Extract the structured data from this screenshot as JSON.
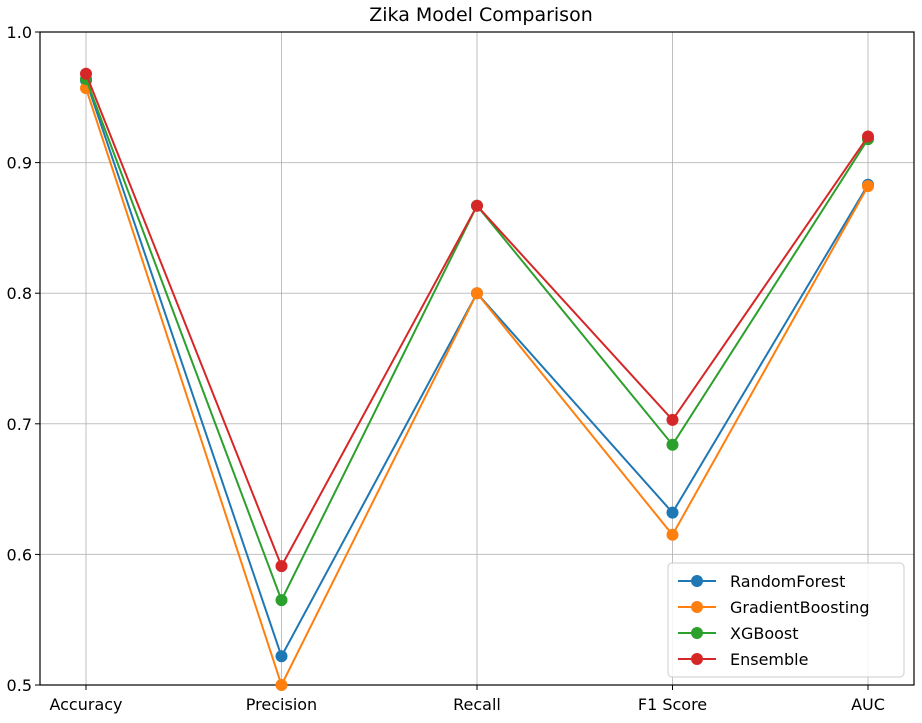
{
  "chart_data": {
    "type": "line",
    "title": "Zika Model Comparison",
    "xlabel": "",
    "ylabel": "",
    "categories": [
      "Accuracy",
      "Precision",
      "Recall",
      "F1 Score",
      "AUC"
    ],
    "ylim": [
      0.5,
      1.0
    ],
    "yticks": [
      "0.5",
      "0.6",
      "0.7",
      "0.8",
      "0.9",
      "1.0"
    ],
    "grid": true,
    "legend_position": "bottom-right",
    "series": [
      {
        "name": "RandomForest",
        "color": "#1f77b4",
        "values": [
          0.963,
          0.522,
          0.8,
          0.632,
          0.883
        ]
      },
      {
        "name": "GradientBoosting",
        "color": "#ff7f0e",
        "values": [
          0.957,
          0.5,
          0.8,
          0.615,
          0.882
        ]
      },
      {
        "name": "XGBoost",
        "color": "#2ca02c",
        "values": [
          0.964,
          0.565,
          0.867,
          0.684,
          0.918
        ]
      },
      {
        "name": "Ensemble",
        "color": "#d62728",
        "values": [
          0.968,
          0.591,
          0.867,
          0.703,
          0.92
        ]
      }
    ]
  }
}
